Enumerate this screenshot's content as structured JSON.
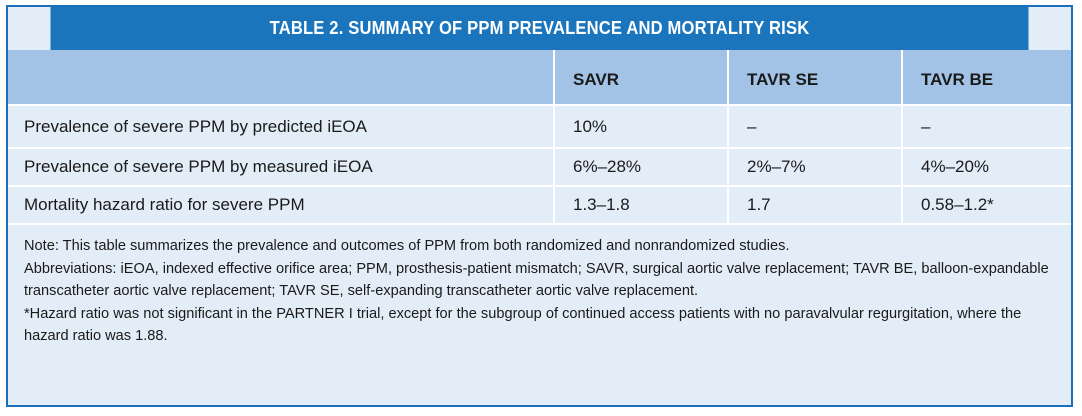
{
  "table": {
    "title": "TABLE 2.  SUMMARY OF PPM PREVALENCE AND MORTALITY RISK",
    "columns": [
      "",
      "SAVR",
      "TAVR SE",
      "TAVR BE"
    ],
    "rows": [
      {
        "label": "Prevalence of severe PPM by predicted iEOA",
        "savr": "10%",
        "tavr_se": "–",
        "tavr_be": "–"
      },
      {
        "label": "Prevalence of severe PPM by measured iEOA",
        "savr": "6%–28%",
        "tavr_se": "2%–7%",
        "tavr_be": "4%–20%"
      },
      {
        "label": "Mortality hazard ratio for severe PPM",
        "savr": "1.3–1.8",
        "tavr_se": "1.7",
        "tavr_be": "0.58–1.2*"
      }
    ],
    "notes": {
      "note": "Note: This table summarizes the prevalence and outcomes of PPM from both randomized and nonrandomized studies.",
      "abbreviations": "Abbreviations: iEOA, indexed effective orifice area; PPM, prosthesis-patient mismatch; SAVR, surgical aortic valve replacement; TAVR BE, balloon-expandable transcatheter aortic valve replacement; TAVR SE, self-expanding transcatheter aortic valve replacement.",
      "footnote": "*Hazard ratio was not significant in the PARTNER I trial, except for the subgroup of continued access patients with no paravalvular regurgitation, where the hazard ratio was 1.88."
    }
  },
  "colors": {
    "title_bar": "#1b75bc",
    "header_row": "#a3c3e6",
    "body_row": "#e2edf8",
    "border": "#1b6fb8"
  }
}
